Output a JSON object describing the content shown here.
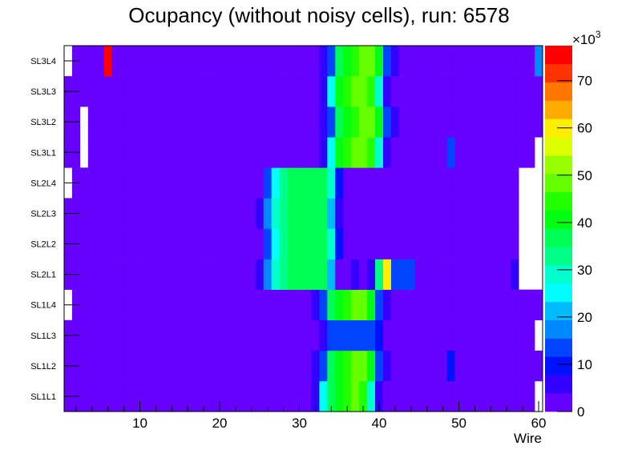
{
  "chart_data": {
    "type": "heatmap",
    "title": "Ocupancy (without noisy cells), run: 6578",
    "xlabel": "Wire",
    "ylabel": "",
    "xlim": [
      0.5,
      60.5
    ],
    "x_ticks": [
      "10",
      "20",
      "30",
      "40",
      "50",
      "60"
    ],
    "z_multiplier_label": "×10",
    "z_multiplier_exp": "3",
    "zlim": [
      0,
      77.4
    ],
    "z_units": "thousands",
    "z_ticks": [
      "0",
      "10",
      "20",
      "30",
      "40",
      "50",
      "60",
      "70"
    ],
    "palette": [
      "#6600ff",
      "#3300ff",
      "#0011ff",
      "#0044ff",
      "#0088ff",
      "#00bbff",
      "#00ffff",
      "#00ffcc",
      "#00ff88",
      "#00ff55",
      "#00ff11",
      "#22ff00",
      "#66ff00",
      "#99ff00",
      "#ddff00",
      "#ffee00",
      "#ffaa00",
      "#ff7700",
      "#ff3300",
      "#ff0000"
    ],
    "empty_value": 0,
    "default_value": 2,
    "rows": [
      {
        "label": "SL1L1",
        "overrides": {
          "32": 6,
          "33": 25,
          "34": 37,
          "35": 41,
          "36": 44.5,
          "37": 48.5,
          "38": 44.5,
          "39": 29,
          "40": 6,
          "60": 0
        }
      },
      {
        "label": "SL1L2",
        "overrides": {
          "32": 6,
          "33": 14,
          "34": 37,
          "35": 41,
          "36": 44.5,
          "37": 48.5,
          "38": 48.5,
          "39": 41,
          "40": 14,
          "41": 6,
          "49": 10
        }
      },
      {
        "label": "SL1L3",
        "overrides": {
          "33": 6,
          "34": 14,
          "35": 14,
          "36": 14,
          "37": 14,
          "38": 14,
          "39": 14,
          "40": 10,
          "60": 0
        }
      },
      {
        "label": "SL1L4",
        "overrides": {
          "1": 0,
          "32": 6,
          "33": 14,
          "34": 37,
          "35": 41,
          "36": 44.5,
          "37": 48.5,
          "38": 48.5,
          "39": 41,
          "40": 14,
          "41": 6
        }
      },
      {
        "label": "SL2L1",
        "overrides": {
          "25": 6,
          "26": 17.5,
          "27": 29,
          "28": 33,
          "29": 37,
          "30": 37,
          "31": 37,
          "32": 37,
          "33": 37,
          "34": 21.5,
          "37": 6,
          "39": 6,
          "40": 33,
          "41": 60,
          "42": 14,
          "43": 14,
          "44": 14,
          "57": 6,
          "58": 0,
          "59": 0,
          "60": 0
        }
      },
      {
        "label": "SL2L2",
        "overrides": {
          "26": 14,
          "27": 25,
          "28": 33,
          "29": 37,
          "30": 37,
          "31": 37,
          "32": 37,
          "33": 37,
          "34": 29,
          "35": 10,
          "58": 0,
          "59": 0,
          "60": 0
        }
      },
      {
        "label": "SL2L3",
        "overrides": {
          "25": 6,
          "26": 17.5,
          "27": 29,
          "28": 33,
          "29": 37,
          "30": 37,
          "31": 37,
          "32": 37,
          "33": 37,
          "34": 21.5,
          "35": 6,
          "58": 0,
          "59": 0,
          "60": 0
        }
      },
      {
        "label": "SL2L4",
        "overrides": {
          "1": 0,
          "26": 14,
          "27": 25,
          "28": 33,
          "29": 37,
          "30": 37,
          "31": 37,
          "32": 37,
          "33": 37,
          "34": 29,
          "35": 10,
          "58": 0,
          "59": 0,
          "60": 0
        }
      },
      {
        "label": "SL3L1",
        "overrides": {
          "3": 0,
          "33": 6,
          "34": 25,
          "35": 41,
          "36": 44.5,
          "37": 48.5,
          "38": 48.5,
          "39": 44.5,
          "40": 29,
          "41": 6,
          "49": 14,
          "60": 0
        }
      },
      {
        "label": "SL3L2",
        "overrides": {
          "3": 0,
          "33": 6,
          "34": 14,
          "35": 37,
          "36": 41,
          "37": 44.5,
          "38": 48.5,
          "39": 48.5,
          "40": 41,
          "41": 14,
          "42": 6
        }
      },
      {
        "label": "SL3L3",
        "overrides": {
          "33": 6,
          "34": 25,
          "35": 41,
          "36": 44.5,
          "37": 48.5,
          "38": 48.5,
          "39": 44.5,
          "40": 29,
          "41": 6
        }
      },
      {
        "label": "SL3L4",
        "overrides": {
          "1": 0,
          "6": 75.5,
          "33": 6,
          "34": 14,
          "35": 37,
          "36": 41,
          "37": 44.5,
          "38": 48.5,
          "39": 48.5,
          "40": 41,
          "41": 14,
          "42": 6,
          "60": 17.5
        }
      }
    ]
  }
}
